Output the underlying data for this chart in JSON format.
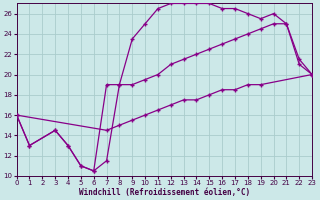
{
  "xlabel": "Windchill (Refroidissement éolien,°C)",
  "bg_color": "#cce8e8",
  "grid_color": "#aacccc",
  "line_color": "#880088",
  "line_width": 0.9,
  "marker": "+",
  "markersize": 3.5,
  "markeredgewidth": 1.0,
  "xlim": [
    0,
    23
  ],
  "ylim": [
    10,
    27
  ],
  "yticks": [
    10,
    12,
    14,
    16,
    18,
    20,
    22,
    24,
    26
  ],
  "xticks": [
    0,
    1,
    2,
    3,
    4,
    5,
    6,
    7,
    8,
    9,
    10,
    11,
    12,
    13,
    14,
    15,
    16,
    17,
    18,
    19,
    20,
    21,
    22,
    23
  ],
  "series": [
    {
      "x": [
        0,
        1,
        3,
        4,
        5,
        6,
        7,
        8,
        9,
        10,
        11,
        12,
        13,
        14,
        15,
        16,
        17,
        18,
        19,
        20,
        21,
        22,
        23
      ],
      "y": [
        16.0,
        13.0,
        14.5,
        13.0,
        11.0,
        10.5,
        11.5,
        19.0,
        23.5,
        25.0,
        26.5,
        27.0,
        27.0,
        27.0,
        27.0,
        26.5,
        26.5,
        26.0,
        25.5,
        26.0,
        25.0,
        21.0,
        20.0
      ]
    },
    {
      "x": [
        0,
        1,
        3,
        4,
        5,
        6,
        7,
        8,
        9,
        10,
        11,
        12,
        13,
        14,
        15,
        16,
        17,
        18,
        19,
        20,
        21,
        22,
        23
      ],
      "y": [
        16.0,
        13.0,
        14.5,
        13.0,
        11.0,
        10.5,
        19.0,
        19.0,
        19.0,
        19.5,
        20.0,
        21.0,
        21.5,
        22.0,
        22.5,
        23.0,
        23.5,
        24.0,
        24.5,
        25.0,
        25.0,
        21.5,
        20.0
      ]
    },
    {
      "x": [
        0,
        7,
        8,
        9,
        10,
        11,
        12,
        13,
        14,
        15,
        16,
        17,
        18,
        19,
        23
      ],
      "y": [
        16.0,
        14.5,
        15.0,
        15.5,
        16.0,
        16.5,
        17.0,
        17.5,
        17.5,
        18.0,
        18.5,
        18.5,
        19.0,
        19.0,
        20.0
      ]
    }
  ]
}
